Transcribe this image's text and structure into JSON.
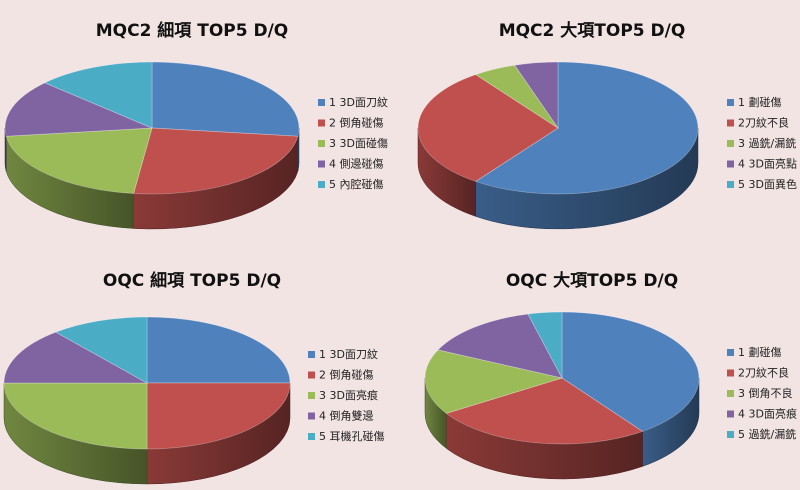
{
  "charts": [
    {
      "title": "MQC2 細項 TOP5 D/Q",
      "type": "pie",
      "slices": [
        {
          "label": "1 3D面刀紋",
          "value": 27,
          "color": "#4f81bd"
        },
        {
          "label": "2 倒角碰傷",
          "value": 25,
          "color": "#c0504d"
        },
        {
          "label": "3 3D面碰傷",
          "value": 21,
          "color": "#9bbb59"
        },
        {
          "label": "4 側邊碰傷",
          "value": 14,
          "color": "#8064a2"
        },
        {
          "label": "5 內腔碰傷",
          "value": 13,
          "color": "#4bacc6"
        }
      ]
    },
    {
      "title": "MQC2 大項TOP5 D/Q",
      "type": "pie",
      "slices": [
        {
          "label": "1 劃碰傷",
          "value": 60,
          "color": "#4f81bd"
        },
        {
          "label": "2刀紋不良",
          "value": 30,
          "color": "#c0504d"
        },
        {
          "label": "3 過銑/漏銑",
          "value": 5,
          "color": "#9bbb59"
        },
        {
          "label": "4 3D面亮點",
          "value": 5,
          "color": "#8064a2"
        },
        {
          "label": "5 3D面異色",
          "value": 0,
          "color": "#4bacc6"
        }
      ]
    },
    {
      "title": "OQC 細項 TOP5 D/Q",
      "type": "pie",
      "slices": [
        {
          "label": "1 3D面刀紋",
          "value": 25,
          "color": "#4f81bd"
        },
        {
          "label": "2 倒角碰傷",
          "value": 25,
          "color": "#c0504d"
        },
        {
          "label": "3 3D面亮痕",
          "value": 25,
          "color": "#9bbb59"
        },
        {
          "label": "4 倒角雙邊",
          "value": 14,
          "color": "#8064a2"
        },
        {
          "label": "5 耳機孔碰傷",
          "value": 11,
          "color": "#4bacc6"
        }
      ]
    },
    {
      "title": "OQC 大項TOP5 D/Q",
      "type": "pie",
      "slices": [
        {
          "label": "1 劃碰傷",
          "value": 40,
          "color": "#4f81bd"
        },
        {
          "label": "2刀紋不良",
          "value": 26,
          "color": "#c0504d"
        },
        {
          "label": "3 倒角不良",
          "value": 16,
          "color": "#9bbb59"
        },
        {
          "label": "4 3D面亮痕",
          "value": 14,
          "color": "#8064a2"
        },
        {
          "label": "5 過銑/漏銑",
          "value": 4,
          "color": "#4bacc6"
        }
      ]
    }
  ]
}
